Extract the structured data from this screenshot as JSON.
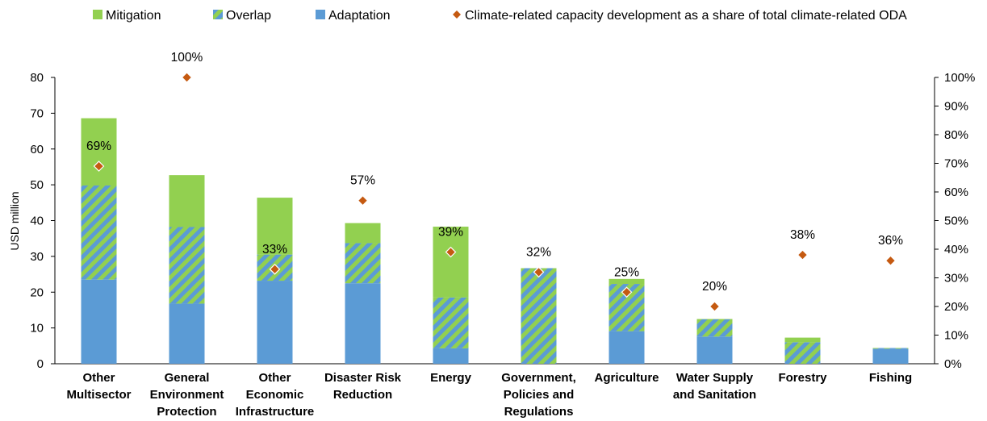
{
  "chart_data": {
    "type": "bar",
    "stacked": true,
    "ylabel": "USD million",
    "ylim": [
      0,
      80
    ],
    "y2lim": [
      0,
      100
    ],
    "y_ticks": [
      "0",
      "10",
      "20",
      "30",
      "40",
      "50",
      "60",
      "70",
      "80"
    ],
    "y2_ticks": [
      "0%",
      "10%",
      "20%",
      "30%",
      "40%",
      "50%",
      "60%",
      "70%",
      "80%",
      "90%",
      "100%"
    ],
    "categories": [
      [
        "Other",
        "Multisector"
      ],
      [
        "General",
        "Environment",
        "Protection"
      ],
      [
        "Other",
        "Economic",
        "Infrastructure"
      ],
      [
        "Disaster Risk",
        "Reduction"
      ],
      [
        "Energy"
      ],
      [
        "Government,",
        "Policies and",
        "Regulations"
      ],
      [
        "Agriculture"
      ],
      [
        "Water Supply",
        "and Sanitation"
      ],
      [
        "Forestry"
      ],
      [
        "Fishing"
      ]
    ],
    "series": [
      {
        "name": "Adaptation",
        "values": [
          23.5,
          16.8,
          23.2,
          22.5,
          4.3,
          0.0,
          9.1,
          7.6,
          0.0,
          4.2
        ],
        "color": "#5b9bd5"
      },
      {
        "name": "Overlap",
        "values": [
          26.3,
          21.4,
          7.3,
          11.2,
          14.2,
          26.7,
          13.2,
          4.8,
          6.0,
          0.2
        ],
        "color": "#92d050"
      },
      {
        "name": "Mitigation",
        "values": [
          18.8,
          14.5,
          15.9,
          5.6,
          19.8,
          0.0,
          1.4,
          0.1,
          1.3,
          0.0
        ],
        "color": "#92d050"
      },
      {
        "name": "Climate-related capacity development as a share of total climate-related ODA",
        "axis": "secondary",
        "marker": "diamond",
        "values": [
          69,
          100,
          33,
          57,
          39,
          32,
          25,
          20,
          38,
          36
        ],
        "labels": [
          "69%",
          "100%",
          "33%",
          "57%",
          "39%",
          "32%",
          "25%",
          "20%",
          "38%",
          "36%"
        ],
        "color": "#c55a11"
      }
    ],
    "legend": {
      "position": "top",
      "items": [
        "Mitigation",
        "Overlap",
        "Adaptation",
        "Climate-related capacity development as a share of total climate-related ODA"
      ]
    },
    "grid": false
  }
}
